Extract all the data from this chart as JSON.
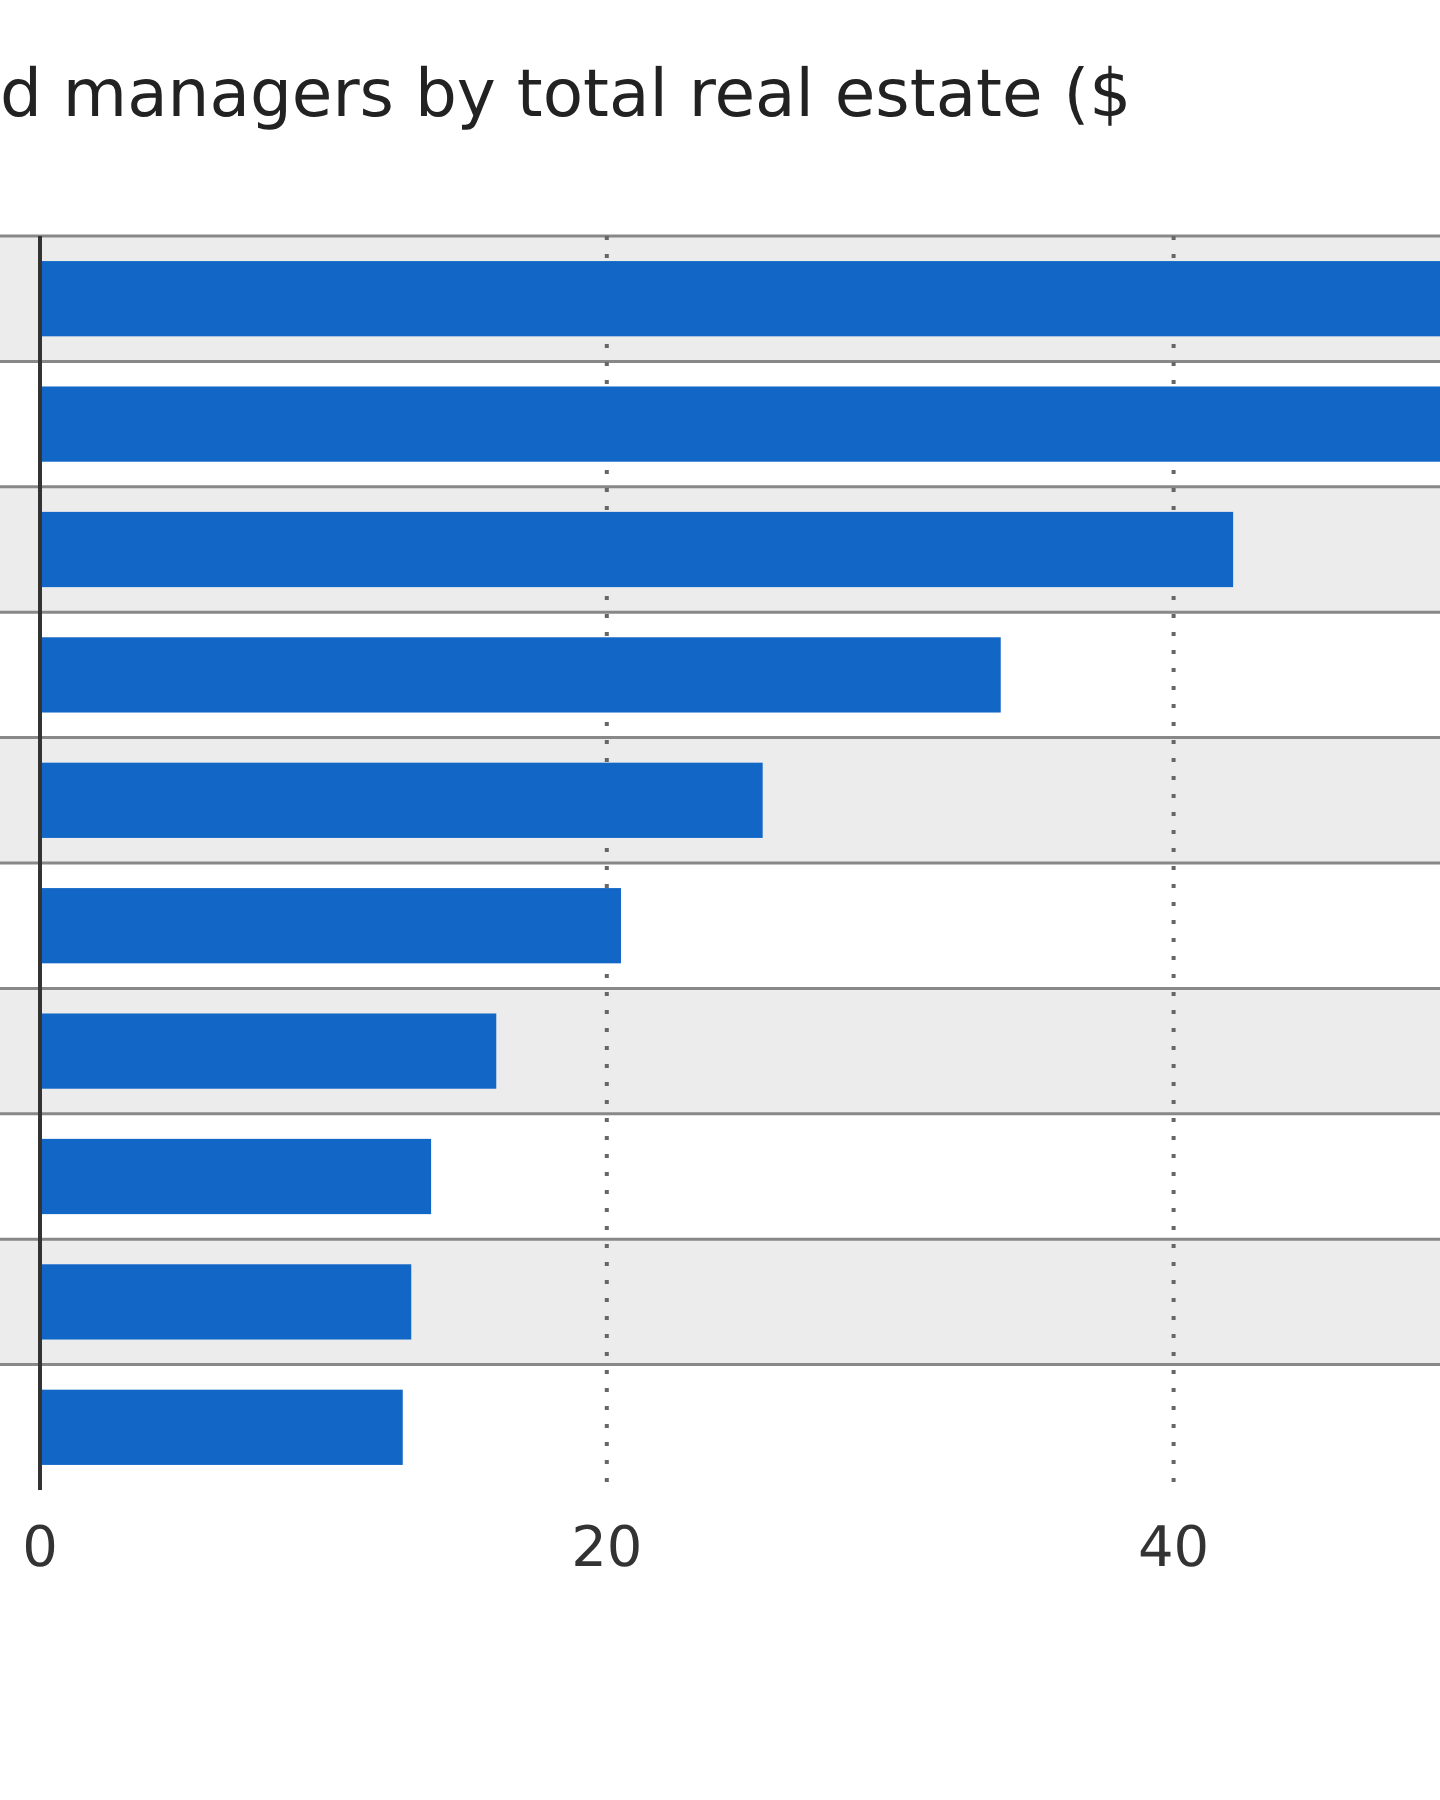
{
  "chart_data": {
    "type": "bar",
    "orientation": "horizontal",
    "title": "d managers by total real estate ($",
    "categories": [
      null,
      null,
      null,
      null,
      null,
      null,
      null,
      null,
      null,
      null
    ],
    "values": [
      49.4,
      49.4,
      42.1,
      33.9,
      25.5,
      20.5,
      16.1,
      13.8,
      13.1,
      12.8
    ],
    "color": "#1166c6",
    "xlim": [
      0,
      49.4
    ],
    "xticks": [
      0,
      20,
      40
    ],
    "grid": "x"
  }
}
